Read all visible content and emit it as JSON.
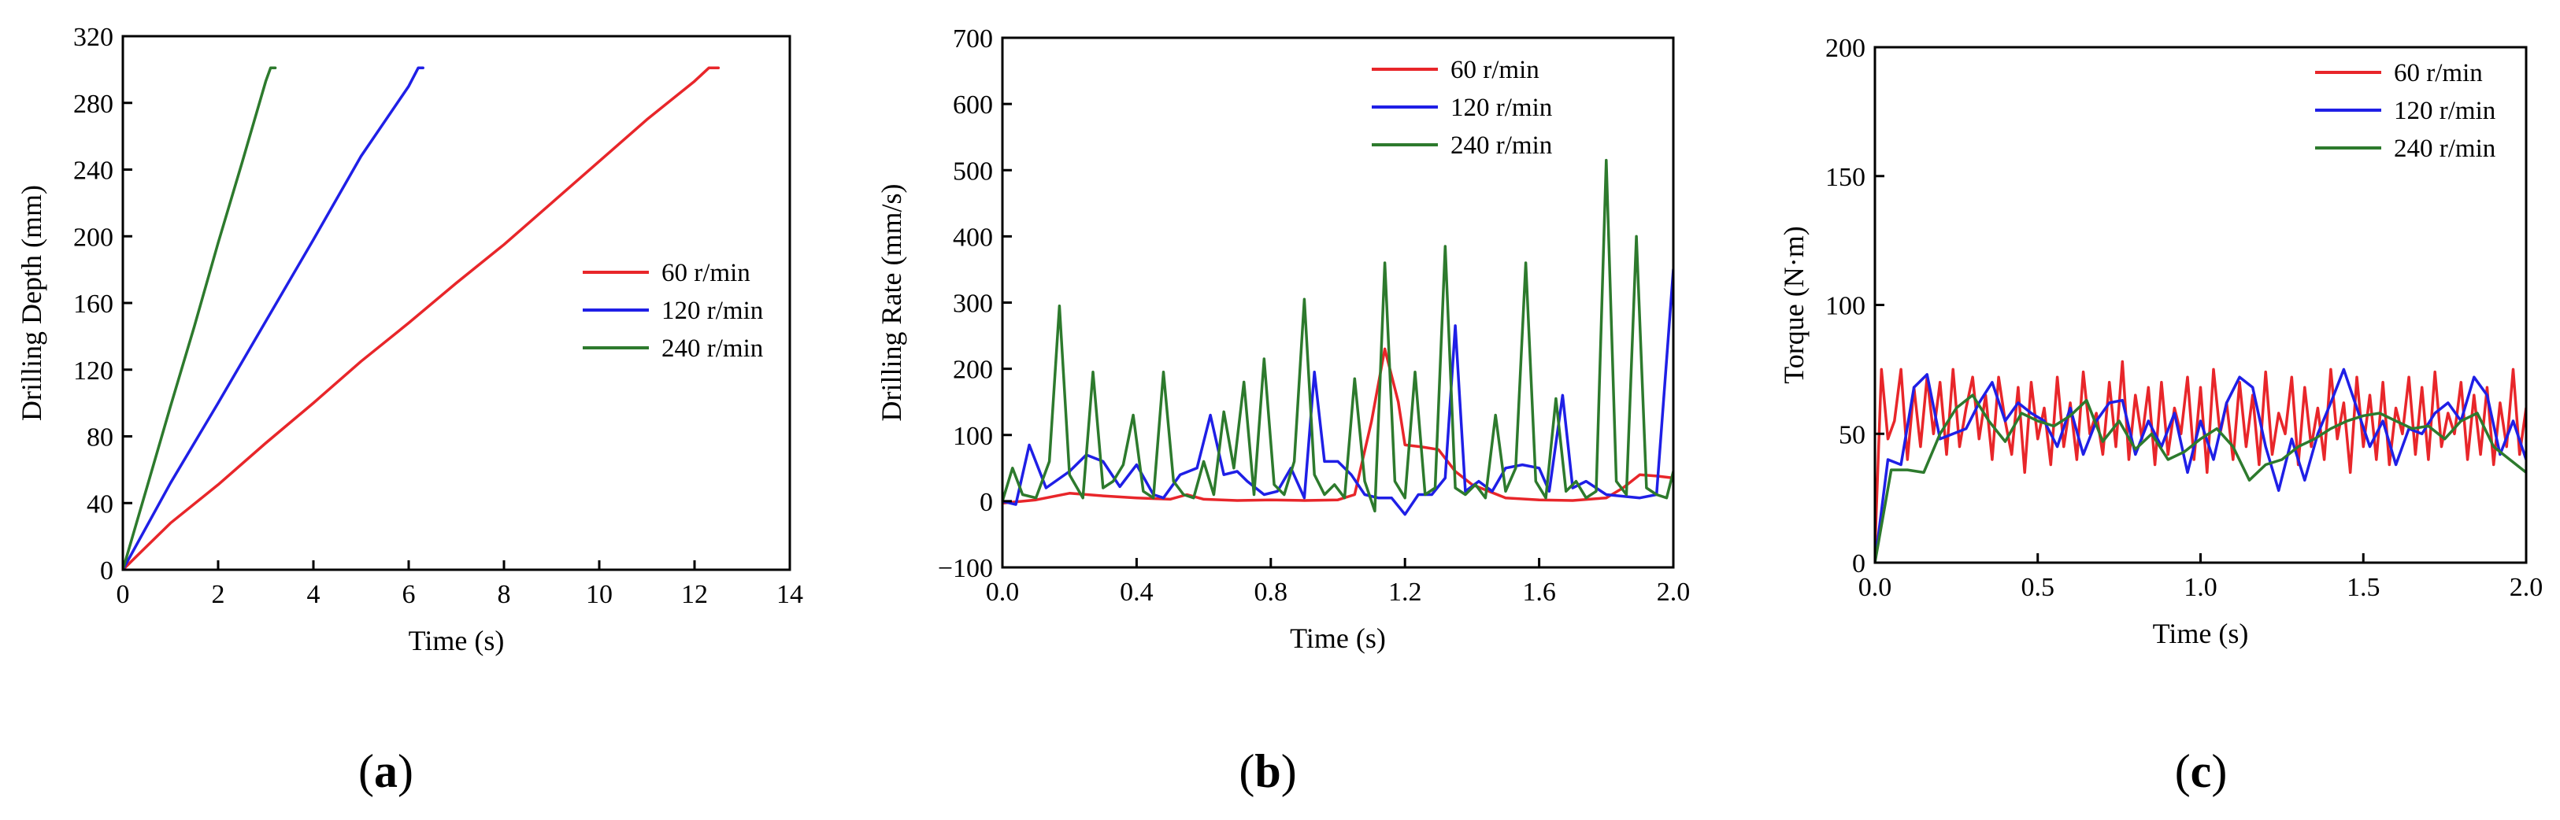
{
  "chart_data": [
    {
      "type": "line",
      "panel_label": "(a)",
      "panel_letter": "a",
      "xlabel": "Time (s)",
      "ylabel": "Drilling Depth (mm)",
      "xlim": [
        0,
        14
      ],
      "ylim": [
        0,
        320
      ],
      "xticks": [
        0,
        2,
        4,
        6,
        8,
        10,
        12,
        14
      ],
      "yticks": [
        0,
        40,
        80,
        120,
        160,
        200,
        240,
        280,
        320
      ],
      "legend_position": "middle-right",
      "series": [
        {
          "name": "60 r/min",
          "color": "#e8262a",
          "x": [
            0,
            0.5,
            1,
            2,
            3,
            4,
            5,
            6,
            7,
            8,
            9,
            10,
            11,
            12,
            12.3,
            12.4,
            12.5
          ],
          "y": [
            0,
            14,
            28,
            51,
            76,
            100,
            125,
            148,
            172,
            195,
            220,
            245,
            270,
            293,
            301,
            301,
            301
          ]
        },
        {
          "name": "120 r/min",
          "color": "#1f1fe6",
          "x": [
            0,
            1,
            2,
            3,
            4,
            5,
            6,
            6.2,
            6.3
          ],
          "y": [
            0,
            52,
            100,
            149,
            198,
            248,
            290,
            301,
            301
          ]
        },
        {
          "name": "240 r/min",
          "color": "#2d7a2d",
          "x": [
            0,
            0.5,
            1,
            1.5,
            2,
            2.5,
            3,
            3.1,
            3.2
          ],
          "y": [
            0,
            49,
            98,
            146,
            196,
            244,
            293,
            301,
            301
          ]
        }
      ]
    },
    {
      "type": "line",
      "panel_label": "(b)",
      "panel_letter": "b",
      "xlabel": "Time (s)",
      "ylabel": "Drilling Rate (mm/s)",
      "xlim": [
        0,
        2.0
      ],
      "ylim": [
        -100,
        700
      ],
      "xticks": [
        0.0,
        0.4,
        0.8,
        1.2,
        1.6,
        2.0
      ],
      "xtick_labels": [
        "0.0",
        "0.4",
        "0.8",
        "1.2",
        "1.6",
        "2.0"
      ],
      "yticks": [
        -100,
        0,
        100,
        200,
        300,
        400,
        500,
        600,
        700
      ],
      "ytick_labels": [
        "−100",
        "0",
        "100",
        "200",
        "300",
        "400",
        "500",
        "600",
        "700"
      ],
      "legend_position": "top-right",
      "series": [
        {
          "name": "60 r/min",
          "color": "#e8262a",
          "x": [
            0,
            0.1,
            0.2,
            0.3,
            0.4,
            0.5,
            0.55,
            0.6,
            0.7,
            0.8,
            0.9,
            1.0,
            1.05,
            1.1,
            1.14,
            1.18,
            1.2,
            1.25,
            1.3,
            1.35,
            1.4,
            1.5,
            1.6,
            1.7,
            1.8,
            1.85,
            1.9,
            1.95,
            2.0
          ],
          "y": [
            -3,
            2,
            12,
            8,
            5,
            3,
            10,
            3,
            1,
            2,
            1,
            2,
            10,
            120,
            230,
            150,
            85,
            82,
            78,
            45,
            25,
            5,
            2,
            1,
            5,
            20,
            40,
            38,
            35
          ]
        },
        {
          "name": "120 r/min",
          "color": "#1f1fe6",
          "x": [
            0,
            0.04,
            0.08,
            0.13,
            0.2,
            0.25,
            0.3,
            0.35,
            0.4,
            0.45,
            0.48,
            0.53,
            0.58,
            0.62,
            0.66,
            0.7,
            0.73,
            0.78,
            0.82,
            0.86,
            0.9,
            0.93,
            0.96,
            1.0,
            1.04,
            1.08,
            1.12,
            1.16,
            1.2,
            1.24,
            1.28,
            1.32,
            1.35,
            1.38,
            1.42,
            1.46,
            1.5,
            1.55,
            1.6,
            1.63,
            1.67,
            1.7,
            1.74,
            1.8,
            1.9,
            1.95,
            2.0
          ],
          "y": [
            0,
            -5,
            85,
            20,
            45,
            70,
            60,
            22,
            55,
            10,
            5,
            40,
            50,
            130,
            40,
            45,
            30,
            10,
            15,
            50,
            5,
            195,
            60,
            60,
            40,
            10,
            5,
            5,
            -20,
            10,
            10,
            35,
            265,
            15,
            30,
            15,
            50,
            55,
            50,
            15,
            160,
            20,
            30,
            10,
            5,
            10,
            350
          ]
        },
        {
          "name": "240 r/min",
          "color": "#2d7a2d",
          "x": [
            0,
            0.03,
            0.06,
            0.1,
            0.14,
            0.17,
            0.2,
            0.24,
            0.27,
            0.3,
            0.33,
            0.36,
            0.39,
            0.42,
            0.45,
            0.48,
            0.51,
            0.54,
            0.57,
            0.6,
            0.63,
            0.66,
            0.69,
            0.72,
            0.75,
            0.78,
            0.81,
            0.84,
            0.87,
            0.9,
            0.93,
            0.96,
            0.99,
            1.02,
            1.05,
            1.08,
            1.11,
            1.14,
            1.17,
            1.2,
            1.23,
            1.26,
            1.29,
            1.32,
            1.35,
            1.38,
            1.41,
            1.44,
            1.47,
            1.5,
            1.53,
            1.56,
            1.59,
            1.62,
            1.65,
            1.68,
            1.71,
            1.74,
            1.77,
            1.8,
            1.83,
            1.86,
            1.89,
            1.92,
            1.95,
            1.98,
            2.0
          ],
          "y": [
            0,
            50,
            10,
            5,
            60,
            295,
            40,
            5,
            195,
            20,
            30,
            55,
            130,
            15,
            5,
            195,
            30,
            10,
            5,
            60,
            10,
            135,
            50,
            180,
            10,
            215,
            25,
            10,
            60,
            305,
            40,
            10,
            25,
            5,
            185,
            30,
            -15,
            360,
            30,
            5,
            195,
            10,
            20,
            385,
            20,
            10,
            25,
            5,
            130,
            15,
            50,
            360,
            30,
            5,
            155,
            15,
            30,
            5,
            15,
            515,
            30,
            10,
            400,
            20,
            10,
            5,
            45
          ]
        }
      ]
    },
    {
      "type": "line",
      "panel_label": "(c)",
      "panel_letter": "c",
      "xlabel": "Time (s)",
      "ylabel": "Torque (N·m)",
      "xlim": [
        0,
        2.0
      ],
      "ylim": [
        0,
        200
      ],
      "xticks": [
        0.0,
        0.5,
        1.0,
        1.5,
        2.0
      ],
      "xtick_labels": [
        "0.0",
        "0.5",
        "1.0",
        "1.5",
        "2.0"
      ],
      "yticks": [
        0,
        50,
        100,
        150,
        200
      ],
      "ytick_labels": [
        "0",
        "50",
        "100",
        "150",
        "200"
      ],
      "legend_position": "top-right",
      "series": [
        {
          "name": "60 r/min",
          "color": "#e8262a",
          "x": [
            0,
            0.02,
            0.04,
            0.06,
            0.08,
            0.1,
            0.12,
            0.14,
            0.16,
            0.18,
            0.2,
            0.22,
            0.24,
            0.26,
            0.28,
            0.3,
            0.32,
            0.34,
            0.36,
            0.38,
            0.4,
            0.42,
            0.44,
            0.46,
            0.48,
            0.5,
            0.52,
            0.54,
            0.56,
            0.58,
            0.6,
            0.62,
            0.64,
            0.66,
            0.68,
            0.7,
            0.72,
            0.74,
            0.76,
            0.78,
            0.8,
            0.82,
            0.84,
            0.86,
            0.88,
            0.9,
            0.92,
            0.94,
            0.96,
            0.98,
            1.0,
            1.02,
            1.04,
            1.06,
            1.08,
            1.1,
            1.12,
            1.14,
            1.16,
            1.18,
            1.2,
            1.22,
            1.24,
            1.26,
            1.28,
            1.3,
            1.32,
            1.34,
            1.36,
            1.38,
            1.4,
            1.42,
            1.44,
            1.46,
            1.48,
            1.5,
            1.52,
            1.54,
            1.56,
            1.58,
            1.6,
            1.62,
            1.64,
            1.66,
            1.68,
            1.7,
            1.72,
            1.74,
            1.76,
            1.78,
            1.8,
            1.82,
            1.84,
            1.86,
            1.88,
            1.9,
            1.92,
            1.94,
            1.96,
            1.98,
            2.0
          ],
          "y": [
            5,
            75,
            48,
            55,
            75,
            40,
            68,
            45,
            72,
            50,
            70,
            42,
            75,
            45,
            60,
            72,
            48,
            65,
            40,
            72,
            55,
            42,
            68,
            35,
            70,
            48,
            60,
            38,
            72,
            45,
            62,
            40,
            74,
            50,
            58,
            42,
            70,
            45,
            78,
            40,
            65,
            48,
            68,
            38,
            70,
            42,
            60,
            50,
            72,
            40,
            68,
            35,
            75,
            50,
            62,
            40,
            70,
            45,
            65,
            38,
            74,
            42,
            58,
            50,
            72,
            38,
            68,
            45,
            60,
            40,
            75,
            48,
            62,
            35,
            72,
            45,
            65,
            40,
            70,
            38,
            60,
            50,
            72,
            42,
            68,
            40,
            74,
            45,
            58,
            50,
            70,
            40,
            65,
            42,
            68,
            38,
            62,
            45,
            75,
            42,
            60
          ]
        },
        {
          "name": "120 r/min",
          "color": "#1f1fe6",
          "x": [
            0,
            0.04,
            0.08,
            0.12,
            0.16,
            0.2,
            0.24,
            0.28,
            0.32,
            0.36,
            0.4,
            0.44,
            0.48,
            0.52,
            0.56,
            0.6,
            0.64,
            0.68,
            0.72,
            0.76,
            0.8,
            0.84,
            0.88,
            0.92,
            0.96,
            1.0,
            1.04,
            1.08,
            1.12,
            1.16,
            1.2,
            1.24,
            1.28,
            1.32,
            1.36,
            1.4,
            1.44,
            1.48,
            1.52,
            1.56,
            1.6,
            1.64,
            1.68,
            1.72,
            1.76,
            1.8,
            1.84,
            1.88,
            1.92,
            1.96,
            2.0
          ],
          "y": [
            0,
            40,
            38,
            68,
            73,
            48,
            50,
            52,
            62,
            70,
            55,
            62,
            58,
            55,
            45,
            60,
            42,
            55,
            62,
            63,
            42,
            55,
            45,
            58,
            35,
            55,
            40,
            62,
            72,
            68,
            45,
            28,
            48,
            32,
            50,
            62,
            75,
            60,
            45,
            55,
            38,
            52,
            50,
            58,
            62,
            55,
            72,
            65,
            42,
            55,
            40
          ]
        },
        {
          "name": "240 r/min",
          "color": "#2d7a2d",
          "x": [
            0,
            0.05,
            0.1,
            0.15,
            0.2,
            0.25,
            0.3,
            0.35,
            0.4,
            0.45,
            0.5,
            0.55,
            0.6,
            0.65,
            0.7,
            0.75,
            0.8,
            0.85,
            0.9,
            0.95,
            1.0,
            1.05,
            1.1,
            1.15,
            1.2,
            1.25,
            1.3,
            1.35,
            1.4,
            1.45,
            1.5,
            1.55,
            1.6,
            1.65,
            1.7,
            1.75,
            1.8,
            1.85,
            1.9,
            1.95,
            2.0
          ],
          "y": [
            0,
            36,
            36,
            35,
            50,
            60,
            65,
            55,
            47,
            58,
            55,
            53,
            57,
            63,
            47,
            55,
            44,
            50,
            40,
            43,
            48,
            52,
            45,
            32,
            38,
            40,
            45,
            48,
            52,
            55,
            57,
            58,
            55,
            52,
            53,
            48,
            55,
            58,
            45,
            40,
            35
          ]
        }
      ]
    }
  ]
}
